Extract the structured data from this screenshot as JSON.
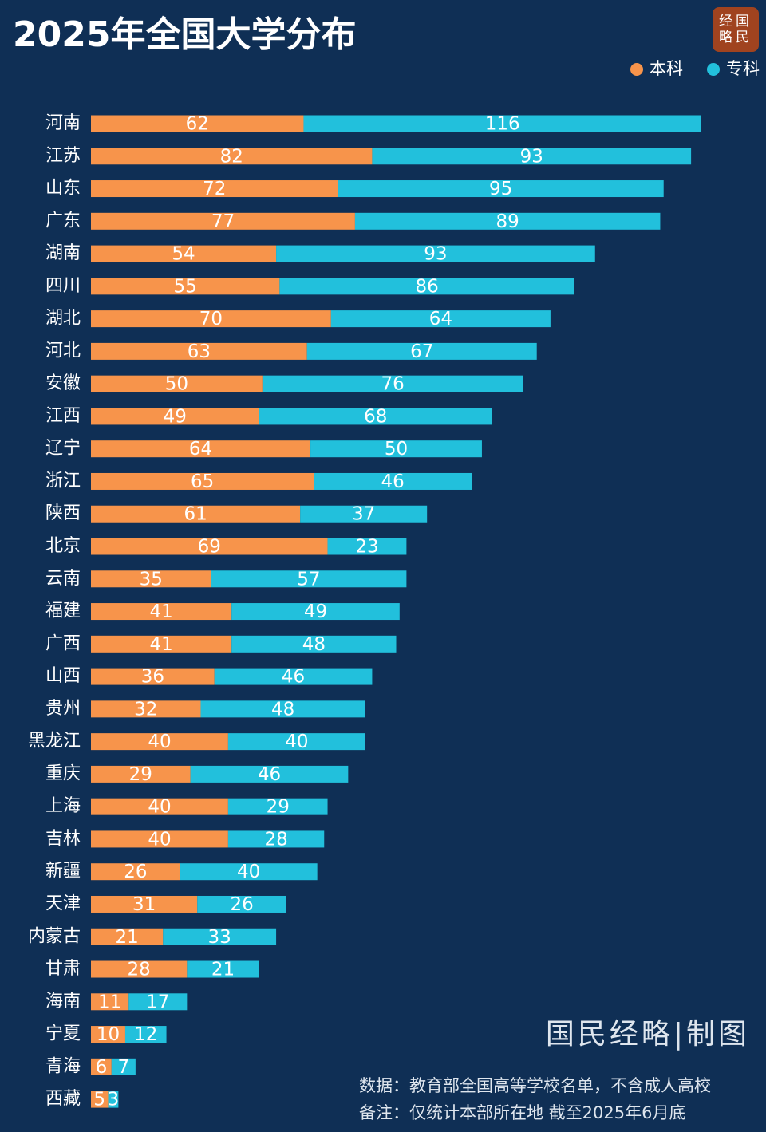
{
  "chart_data": {
    "type": "bar",
    "title": "2025年全国大学分布",
    "logo": [
      "经国",
      "略民"
    ],
    "credit": "国民经略|制图",
    "notes": [
      "数据：教育部全国高等学校名单，不含成人高校",
      "备注：仅统计本部所在地 截至2025年6月底"
    ],
    "categories": [
      "河南",
      "江苏",
      "山东",
      "广东",
      "湖南",
      "四川",
      "湖北",
      "河北",
      "安徽",
      "江西",
      "辽宁",
      "浙江",
      "陕西",
      "北京",
      "云南",
      "福建",
      "广西",
      "山西",
      "贵州",
      "黑龙江",
      "重庆",
      "上海",
      "吉林",
      "新疆",
      "天津",
      "内蒙古",
      "甘肃",
      "海南",
      "宁夏",
      "青海",
      "西藏"
    ],
    "series": [
      {
        "name": "本科",
        "color": "#f7944b",
        "values": [
          62,
          82,
          72,
          77,
          54,
          55,
          70,
          63,
          50,
          49,
          64,
          65,
          61,
          69,
          35,
          41,
          41,
          36,
          32,
          40,
          29,
          40,
          40,
          26,
          31,
          21,
          28,
          11,
          10,
          6,
          5
        ]
      },
      {
        "name": "专科",
        "color": "#22c0dc",
        "values": [
          116,
          93,
          95,
          89,
          93,
          86,
          64,
          67,
          76,
          68,
          50,
          46,
          37,
          23,
          57,
          49,
          48,
          46,
          48,
          40,
          46,
          29,
          28,
          40,
          26,
          33,
          21,
          17,
          12,
          7,
          3
        ]
      }
    ]
  }
}
